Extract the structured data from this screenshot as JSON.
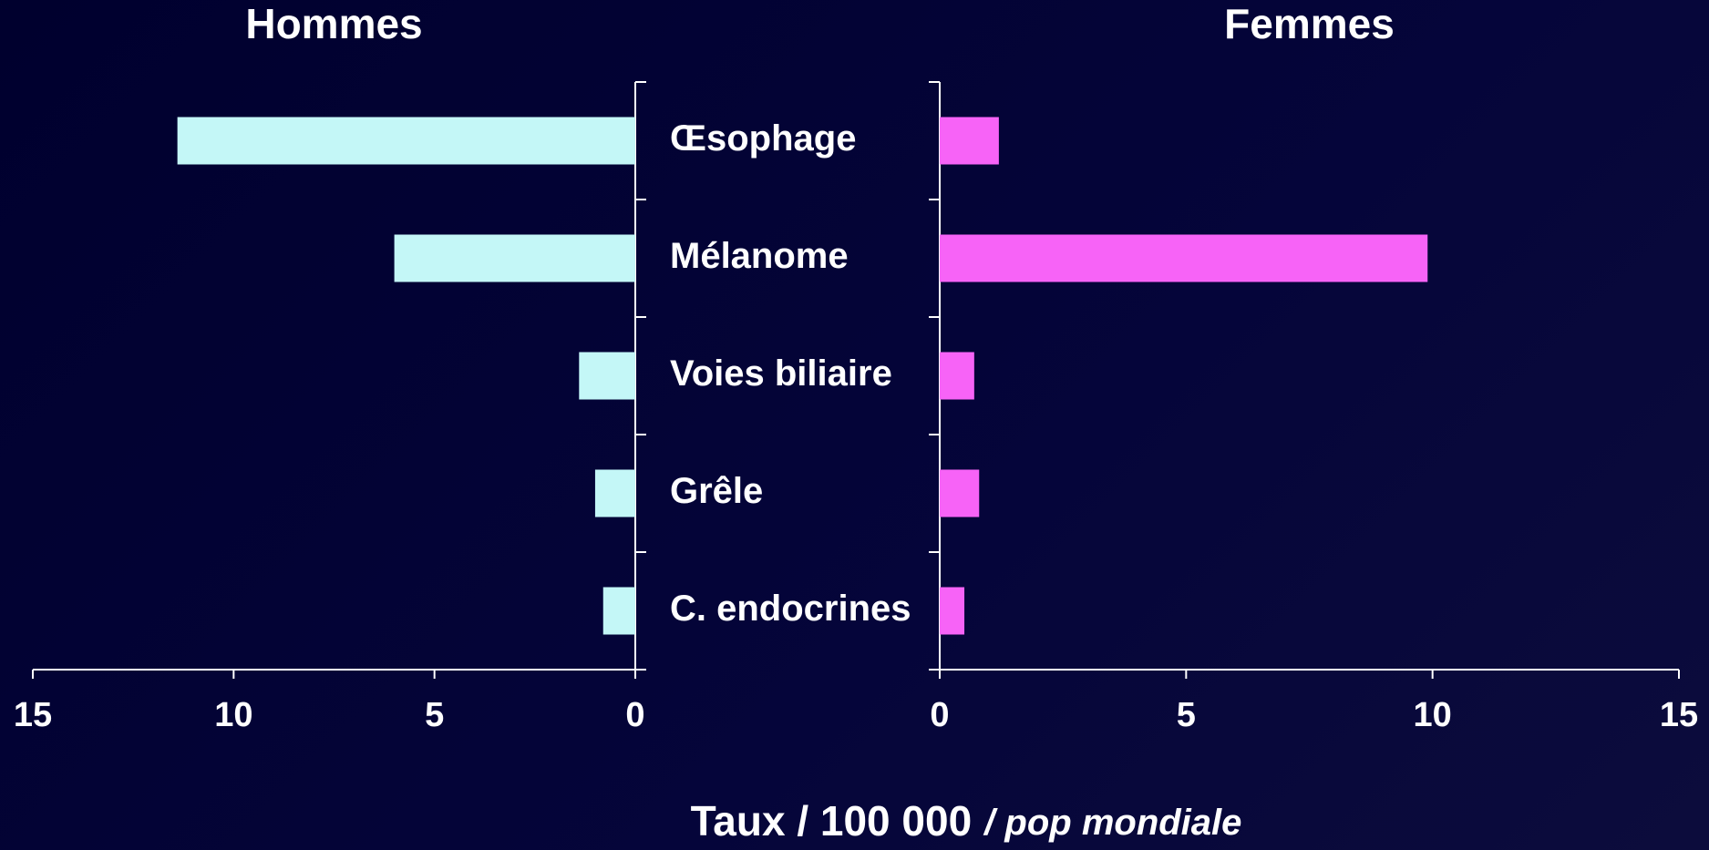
{
  "chart_data": {
    "type": "bar",
    "orientation": "horizontal",
    "categories": [
      "Œsophage",
      "Mélanome",
      "Voies biliaire",
      "Grêle",
      "C. endocrines"
    ],
    "series": [
      {
        "name": "Hommes",
        "color": "#c4f7f7",
        "direction": "left",
        "values": [
          11.4,
          6.0,
          1.4,
          1.0,
          0.8
        ],
        "xlim": [
          0,
          15
        ],
        "xticks": [
          0,
          5,
          10,
          15
        ]
      },
      {
        "name": "Femmes",
        "color": "#f763f7",
        "direction": "right",
        "values": [
          1.2,
          9.9,
          0.7,
          0.8,
          0.5
        ],
        "xlim": [
          0,
          15
        ],
        "xticks": [
          0,
          5,
          10,
          15
        ]
      }
    ],
    "xlabel": "Taux / 100 000",
    "xlabel_note": "/ pop mondiale"
  }
}
